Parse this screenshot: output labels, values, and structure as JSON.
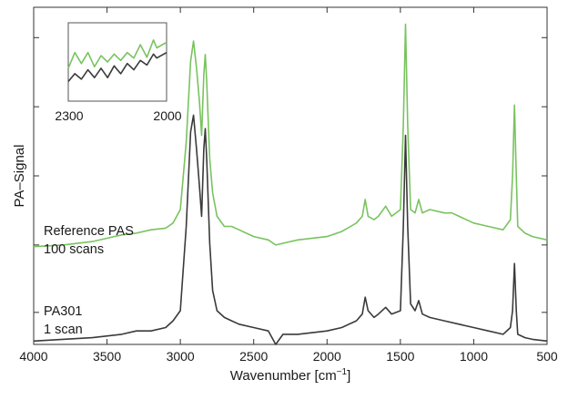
{
  "chart_data": {
    "type": "line",
    "title": "",
    "xlabel": "Wavenumber [cm",
    "xlabel_sup": "−1",
    "xlabel_end": "]",
    "ylabel": "PA–Signal",
    "x_reversed": true,
    "xlim": [
      4000,
      500
    ],
    "ylim": [
      0,
      1
    ],
    "x_ticks": [
      4000,
      3500,
      3000,
      2500,
      2000,
      1500,
      1000,
      500
    ],
    "x_tick_labels": [
      "4000",
      "3500",
      "3000",
      "2500",
      "2000",
      "1500",
      "1000",
      "500"
    ],
    "y_ticks": [
      0.095,
      0.295,
      0.5,
      0.705,
      0.91
    ],
    "grid": false,
    "series": [
      {
        "color": "#79c35f",
        "label_lines": [
          "Reference PAS",
          "100 scans"
        ],
        "points": [
          [
            4000,
            0.29
          ],
          [
            3800,
            0.295
          ],
          [
            3600,
            0.305
          ],
          [
            3400,
            0.325
          ],
          [
            3300,
            0.33
          ],
          [
            3200,
            0.34
          ],
          [
            3100,
            0.345
          ],
          [
            3050,
            0.36
          ],
          [
            3000,
            0.4
          ],
          [
            2960,
            0.6
          ],
          [
            2930,
            0.84
          ],
          [
            2910,
            0.9
          ],
          [
            2890,
            0.82
          ],
          [
            2870,
            0.72
          ],
          [
            2855,
            0.62
          ],
          [
            2840,
            0.8
          ],
          [
            2830,
            0.86
          ],
          [
            2820,
            0.78
          ],
          [
            2800,
            0.55
          ],
          [
            2780,
            0.45
          ],
          [
            2750,
            0.38
          ],
          [
            2700,
            0.35
          ],
          [
            2650,
            0.35
          ],
          [
            2600,
            0.34
          ],
          [
            2500,
            0.32
          ],
          [
            2400,
            0.31
          ],
          [
            2350,
            0.295
          ],
          [
            2300,
            0.3
          ],
          [
            2200,
            0.31
          ],
          [
            2000,
            0.32
          ],
          [
            1900,
            0.335
          ],
          [
            1800,
            0.36
          ],
          [
            1760,
            0.38
          ],
          [
            1740,
            0.43
          ],
          [
            1720,
            0.38
          ],
          [
            1680,
            0.37
          ],
          [
            1650,
            0.38
          ],
          [
            1600,
            0.41
          ],
          [
            1560,
            0.38
          ],
          [
            1500,
            0.4
          ],
          [
            1480,
            0.65
          ],
          [
            1465,
            0.95
          ],
          [
            1450,
            0.65
          ],
          [
            1430,
            0.4
          ],
          [
            1400,
            0.39
          ],
          [
            1375,
            0.43
          ],
          [
            1350,
            0.39
          ],
          [
            1300,
            0.4
          ],
          [
            1200,
            0.39
          ],
          [
            1150,
            0.39
          ],
          [
            1100,
            0.38
          ],
          [
            1000,
            0.36
          ],
          [
            900,
            0.35
          ],
          [
            800,
            0.34
          ],
          [
            750,
            0.37
          ],
          [
            735,
            0.5
          ],
          [
            722,
            0.71
          ],
          [
            710,
            0.5
          ],
          [
            700,
            0.35
          ],
          [
            650,
            0.33
          ],
          [
            600,
            0.32
          ],
          [
            500,
            0.31
          ]
        ]
      },
      {
        "color": "#3a3a3a",
        "label_lines": [
          "PA301",
          "1 scan"
        ],
        "points": [
          [
            4000,
            0.01
          ],
          [
            3800,
            0.015
          ],
          [
            3600,
            0.02
          ],
          [
            3400,
            0.03
          ],
          [
            3300,
            0.04
          ],
          [
            3200,
            0.04
          ],
          [
            3100,
            0.05
          ],
          [
            3050,
            0.07
          ],
          [
            3000,
            0.1
          ],
          [
            2960,
            0.35
          ],
          [
            2930,
            0.63
          ],
          [
            2910,
            0.68
          ],
          [
            2890,
            0.58
          ],
          [
            2870,
            0.47
          ],
          [
            2855,
            0.38
          ],
          [
            2840,
            0.58
          ],
          [
            2830,
            0.64
          ],
          [
            2820,
            0.55
          ],
          [
            2800,
            0.3
          ],
          [
            2780,
            0.16
          ],
          [
            2750,
            0.1
          ],
          [
            2700,
            0.08
          ],
          [
            2650,
            0.07
          ],
          [
            2600,
            0.06
          ],
          [
            2500,
            0.05
          ],
          [
            2400,
            0.04
          ],
          [
            2350,
            0.0
          ],
          [
            2300,
            0.03
          ],
          [
            2200,
            0.03
          ],
          [
            2000,
            0.04
          ],
          [
            1900,
            0.05
          ],
          [
            1800,
            0.07
          ],
          [
            1760,
            0.09
          ],
          [
            1740,
            0.14
          ],
          [
            1720,
            0.1
          ],
          [
            1680,
            0.08
          ],
          [
            1650,
            0.09
          ],
          [
            1600,
            0.11
          ],
          [
            1560,
            0.09
          ],
          [
            1500,
            0.1
          ],
          [
            1480,
            0.35
          ],
          [
            1465,
            0.62
          ],
          [
            1450,
            0.35
          ],
          [
            1430,
            0.12
          ],
          [
            1400,
            0.1
          ],
          [
            1375,
            0.13
          ],
          [
            1350,
            0.09
          ],
          [
            1300,
            0.08
          ],
          [
            1200,
            0.07
          ],
          [
            1100,
            0.06
          ],
          [
            1000,
            0.05
          ],
          [
            900,
            0.04
          ],
          [
            800,
            0.03
          ],
          [
            750,
            0.05
          ],
          [
            735,
            0.1
          ],
          [
            722,
            0.24
          ],
          [
            710,
            0.1
          ],
          [
            700,
            0.03
          ],
          [
            650,
            0.02
          ],
          [
            600,
            0.015
          ],
          [
            500,
            0.01
          ]
        ]
      }
    ],
    "inset": {
      "x_tick_labels": [
        "2300",
        "2000"
      ],
      "series": [
        {
          "color": "#79c35f",
          "points": [
            [
              2300,
              0.42
            ],
            [
              2280,
              0.62
            ],
            [
              2260,
              0.48
            ],
            [
              2240,
              0.62
            ],
            [
              2220,
              0.44
            ],
            [
              2200,
              0.58
            ],
            [
              2180,
              0.5
            ],
            [
              2160,
              0.6
            ],
            [
              2140,
              0.52
            ],
            [
              2120,
              0.62
            ],
            [
              2100,
              0.55
            ],
            [
              2080,
              0.72
            ],
            [
              2060,
              0.56
            ],
            [
              2040,
              0.78
            ],
            [
              2030,
              0.68
            ],
            [
              2000,
              0.75
            ]
          ]
        },
        {
          "color": "#3a3a3a",
          "points": [
            [
              2300,
              0.25
            ],
            [
              2280,
              0.35
            ],
            [
              2260,
              0.28
            ],
            [
              2240,
              0.4
            ],
            [
              2220,
              0.3
            ],
            [
              2200,
              0.42
            ],
            [
              2180,
              0.3
            ],
            [
              2160,
              0.45
            ],
            [
              2140,
              0.35
            ],
            [
              2120,
              0.48
            ],
            [
              2100,
              0.4
            ],
            [
              2080,
              0.52
            ],
            [
              2060,
              0.46
            ],
            [
              2040,
              0.6
            ],
            [
              2030,
              0.55
            ],
            [
              2000,
              0.62
            ]
          ]
        }
      ]
    }
  }
}
